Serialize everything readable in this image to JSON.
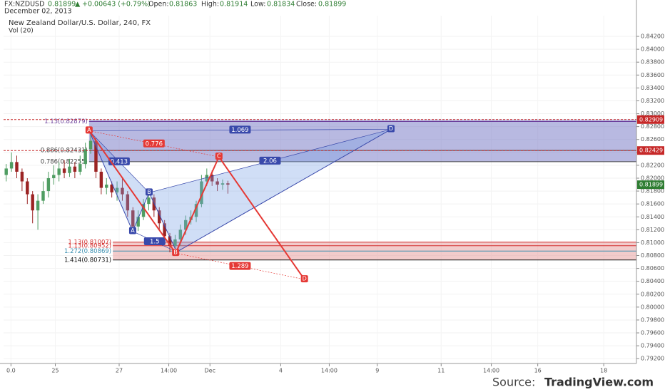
{
  "header": {
    "symbol": "FX:NZDUSD",
    "last": "0.81899",
    "arrow": "▲",
    "change": "+0.00643 (+0.79%)",
    "open_label": "Open:",
    "open": "0.81863",
    "high_label": "High:",
    "high": "0.81914",
    "low_label": "Low:",
    "low": "0.81834",
    "close_label": "Close:",
    "close": "0.81899",
    "date": "December 02, 2013"
  },
  "footer": {
    "source_label": "Source:",
    "source": "TradingView.com"
  },
  "chart_data": {
    "type": "candlestick",
    "title": "New Zealand Dollar/U.S. Dollar, 240, FX",
    "subtitle": "Vol (20)",
    "up_color": "#4f9d62",
    "down_color": "#9b2323",
    "grid": true,
    "x": [
      0,
      1,
      2,
      3,
      4,
      5,
      6,
      7,
      8,
      9,
      10,
      11,
      12,
      13,
      14,
      15,
      16,
      17,
      18,
      19,
      20,
      21,
      22,
      23,
      24,
      25,
      26,
      27,
      28,
      29,
      30,
      31,
      32,
      33,
      34,
      35,
      36,
      37,
      38,
      39,
      40,
      41,
      42
    ],
    "open": [
      0.8205,
      0.8215,
      0.8225,
      0.821,
      0.8195,
      0.8175,
      0.815,
      0.8165,
      0.818,
      0.82,
      0.8205,
      0.8215,
      0.8208,
      0.8218,
      0.821,
      0.8222,
      0.8245,
      0.8258,
      0.821,
      0.8185,
      0.819,
      0.8178,
      0.8185,
      0.8175,
      0.815,
      0.8125,
      0.814,
      0.816,
      0.817,
      0.815,
      0.813,
      0.811,
      0.8095,
      0.8105,
      0.812,
      0.8135,
      0.814,
      0.816,
      0.8195,
      0.8205,
      0.8195,
      0.819,
      0.8192
    ],
    "high": [
      0.8222,
      0.824,
      0.8235,
      0.8215,
      0.82,
      0.818,
      0.8175,
      0.8195,
      0.821,
      0.822,
      0.8225,
      0.8228,
      0.823,
      0.8225,
      0.8235,
      0.8255,
      0.8268,
      0.8262,
      0.8215,
      0.82,
      0.8195,
      0.8195,
      0.82,
      0.818,
      0.8155,
      0.815,
      0.8168,
      0.818,
      0.8175,
      0.8155,
      0.8135,
      0.8115,
      0.8112,
      0.8128,
      0.8142,
      0.815,
      0.8165,
      0.8205,
      0.8215,
      0.8212,
      0.82,
      0.8198,
      0.8196
    ],
    "low": [
      0.8195,
      0.821,
      0.82,
      0.818,
      0.816,
      0.813,
      0.812,
      0.816,
      0.817,
      0.819,
      0.8195,
      0.82,
      0.8202,
      0.82,
      0.8205,
      0.8215,
      0.8238,
      0.82,
      0.8175,
      0.8175,
      0.817,
      0.8165,
      0.8165,
      0.814,
      0.8115,
      0.8118,
      0.8135,
      0.815,
      0.814,
      0.812,
      0.81,
      0.8085,
      0.8085,
      0.8095,
      0.8112,
      0.8128,
      0.8132,
      0.8155,
      0.8188,
      0.8188,
      0.818,
      0.8182,
      0.8176
    ],
    "close": [
      0.8215,
      0.8225,
      0.821,
      0.8195,
      0.8175,
      0.815,
      0.8165,
      0.818,
      0.82,
      0.8205,
      0.8215,
      0.8208,
      0.8218,
      0.821,
      0.8222,
      0.8245,
      0.8258,
      0.821,
      0.8185,
      0.819,
      0.8178,
      0.8185,
      0.8175,
      0.815,
      0.8125,
      0.814,
      0.816,
      0.817,
      0.815,
      0.813,
      0.811,
      0.8095,
      0.8105,
      0.812,
      0.8135,
      0.814,
      0.816,
      0.8195,
      0.8205,
      0.8195,
      0.819,
      0.8192,
      0.819
    ],
    "xlim": [
      -0.5,
      119.4
    ],
    "ylim": [
      0.79125,
      0.84521
    ],
    "xticks": [
      {
        "value": 0.9,
        "label": "0.0"
      },
      {
        "value": 9.3,
        "label": "25"
      },
      {
        "value": 21.4,
        "label": "27"
      },
      {
        "value": 30.8,
        "label": "14:00"
      },
      {
        "value": 38.6,
        "label": "Dec"
      },
      {
        "value": 52,
        "label": "4"
      },
      {
        "value": 61.2,
        "label": "14:00"
      },
      {
        "value": 70.3,
        "label": "9"
      },
      {
        "value": 82.4,
        "label": "11"
      },
      {
        "value": 91.9,
        "label": "14:00"
      },
      {
        "value": 100.7,
        "label": "16"
      },
      {
        "value": 113.2,
        "label": "18"
      }
    ],
    "yticks": [
      {
        "value": 0.842,
        "label": "0.84200"
      },
      {
        "value": 0.84,
        "label": "0.84000"
      },
      {
        "value": 0.838,
        "label": "0.83800"
      },
      {
        "value": 0.836,
        "label": "0.83600"
      },
      {
        "value": 0.834,
        "label": "0.83400"
      },
      {
        "value": 0.832,
        "label": "0.83200"
      },
      {
        "value": 0.83,
        "label": "0.83000"
      },
      {
        "value": 0.828,
        "label": "0.82800"
      },
      {
        "value": 0.826,
        "label": "0.82600"
      },
      {
        "value": 0.824,
        "label": "0.82400"
      },
      {
        "value": 0.822,
        "label": "0.82200"
      },
      {
        "value": 0.82,
        "label": "0.82000"
      },
      {
        "value": 0.818,
        "label": "0.81800"
      },
      {
        "value": 0.816,
        "label": "0.81600"
      },
      {
        "value": 0.814,
        "label": "0.81400"
      },
      {
        "value": 0.812,
        "label": "0.81200"
      },
      {
        "value": 0.81,
        "label": "0.81000"
      },
      {
        "value": 0.808,
        "label": "0.80800"
      },
      {
        "value": 0.806,
        "label": "0.80600"
      },
      {
        "value": 0.804,
        "label": "0.80400"
      },
      {
        "value": 0.802,
        "label": "0.80200"
      },
      {
        "value": 0.8,
        "label": "0.80000"
      },
      {
        "value": 0.798,
        "label": "0.79800"
      },
      {
        "value": 0.796,
        "label": "0.79600"
      },
      {
        "value": 0.794,
        "label": "0.79400"
      },
      {
        "value": 0.792,
        "label": "0.79200"
      }
    ],
    "zones": [
      {
        "range": [
          0.82255,
          0.82909
        ],
        "x": 15.7,
        "color": "#7e7fc9",
        "levels": [
          {
            "value": 0.82879,
            "label": "1.13(0.82879)",
            "color": "#6a3d9a"
          },
          {
            "value": 0.82431,
            "label": "0.886(0.82431)",
            "color": "#444444"
          },
          {
            "value": 0.82255,
            "label": "0.786(0.82255)",
            "color": "#444444"
          }
        ]
      },
      {
        "range": [
          0.80731,
          0.81007
        ],
        "x": 20.2,
        "color": "#e8a0a0",
        "levels": [
          {
            "value": 0.81007,
            "label": "1.13(0.81007)",
            "color": "#d32f2f"
          },
          {
            "value": 0.80952,
            "label": "1.13(0.80952)",
            "color": "#d32f2f"
          },
          {
            "value": 0.80869,
            "label": "1.272(0.80869)",
            "color": "#3a8fb0"
          },
          {
            "value": 0.80731,
            "label": "1.414(0.80731)",
            "color": "#111111"
          }
        ]
      }
    ],
    "price_labels": [
      {
        "value": 0.82909,
        "color": "#c62828"
      },
      {
        "value": 0.82429,
        "color": "#c62828"
      },
      {
        "value": 0.81899,
        "color": "#2e7d32"
      }
    ],
    "patterns": [
      {
        "color": "#3949ab",
        "fill": "rgba(120,160,230,0.35)",
        "points": [
          {
            "x": 15.7,
            "y": 0.82736
          },
          {
            "x": 23.96,
            "y": 0.81176,
            "label": "A"
          },
          {
            "x": 27.07,
            "y": 0.81775,
            "label": "B"
          },
          {
            "x": 32.3,
            "y": 0.80856
          },
          {
            "x": 72.9,
            "y": 0.82758,
            "label": "D"
          }
        ],
        "ratios": [
          "0.413",
          "1.5",
          "2.06",
          "1.069"
        ]
      },
      {
        "color": "#e53935",
        "points": [
          {
            "x": 15.7,
            "y": 0.82736,
            "label": "A"
          },
          {
            "x": 32.1,
            "y": 0.80837,
            "label": "B"
          },
          {
            "x": 40.3,
            "y": 0.8233,
            "label": "C"
          },
          {
            "x": 56.5,
            "y": 0.80429,
            "label": "D"
          }
        ],
        "ratios": [
          "0.776",
          "1.289"
        ]
      }
    ]
  }
}
